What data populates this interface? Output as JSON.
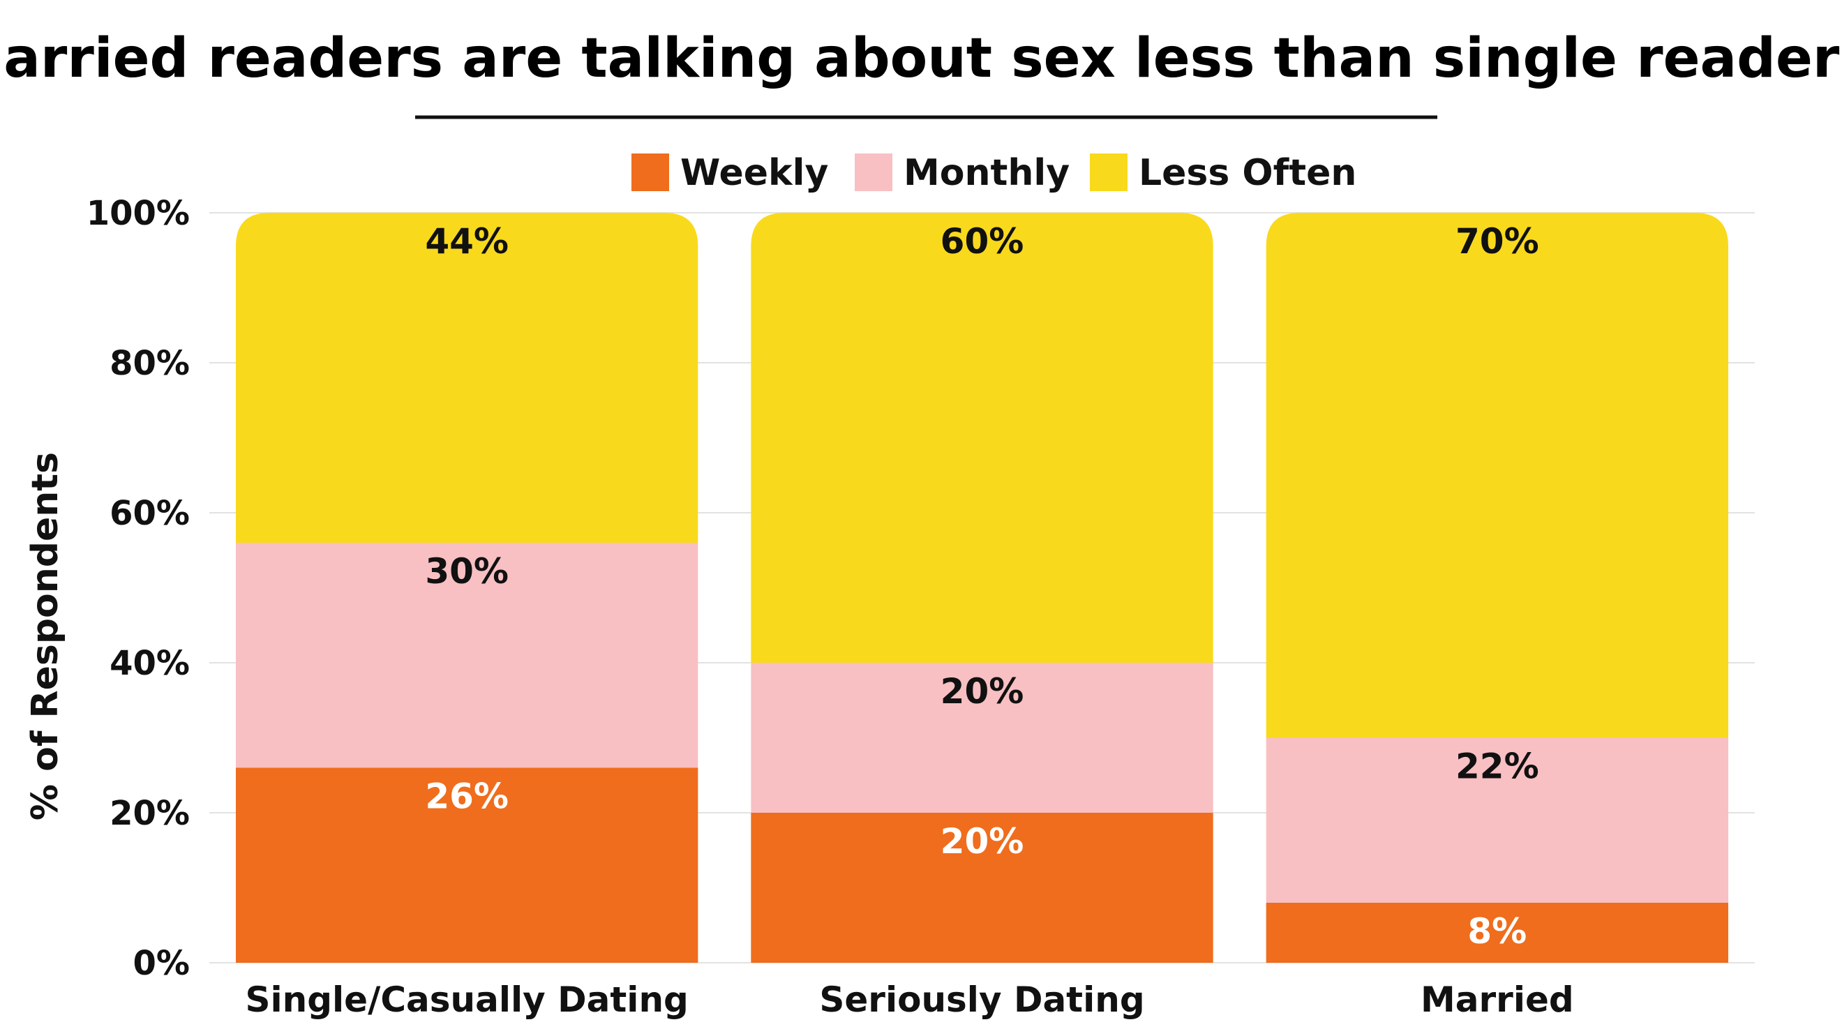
{
  "chart_data": {
    "type": "bar",
    "stacked": true,
    "title": "Married readers are talking about sex less than single readers.",
    "ylabel": "% of Respondents",
    "xlabel": "",
    "ylim": [
      0,
      100
    ],
    "yticks": [
      0,
      20,
      40,
      60,
      80,
      100
    ],
    "ytick_labels": [
      "0%",
      "20%",
      "40%",
      "60%",
      "80%",
      "100%"
    ],
    "grid": true,
    "legend_position": "top-center",
    "categories": [
      "Single/Casually Dating",
      "Seriously Dating",
      "Married"
    ],
    "series": [
      {
        "name": "Weekly",
        "values": [
          26,
          20,
          8
        ],
        "labels": [
          "26%",
          "20%",
          "8%"
        ],
        "color": "#EF6D1C",
        "label_color": "#ffffff"
      },
      {
        "name": "Monthly",
        "values": [
          30,
          20,
          22
        ],
        "labels": [
          "30%",
          "20%",
          "22%"
        ],
        "color": "#F8C0C3",
        "label_color": "#111111"
      },
      {
        "name": "Less Often",
        "values": [
          44,
          60,
          70
        ],
        "labels": [
          "44%",
          "60%",
          "70%"
        ],
        "color": "#F9D91C",
        "label_color": "#111111"
      }
    ]
  }
}
